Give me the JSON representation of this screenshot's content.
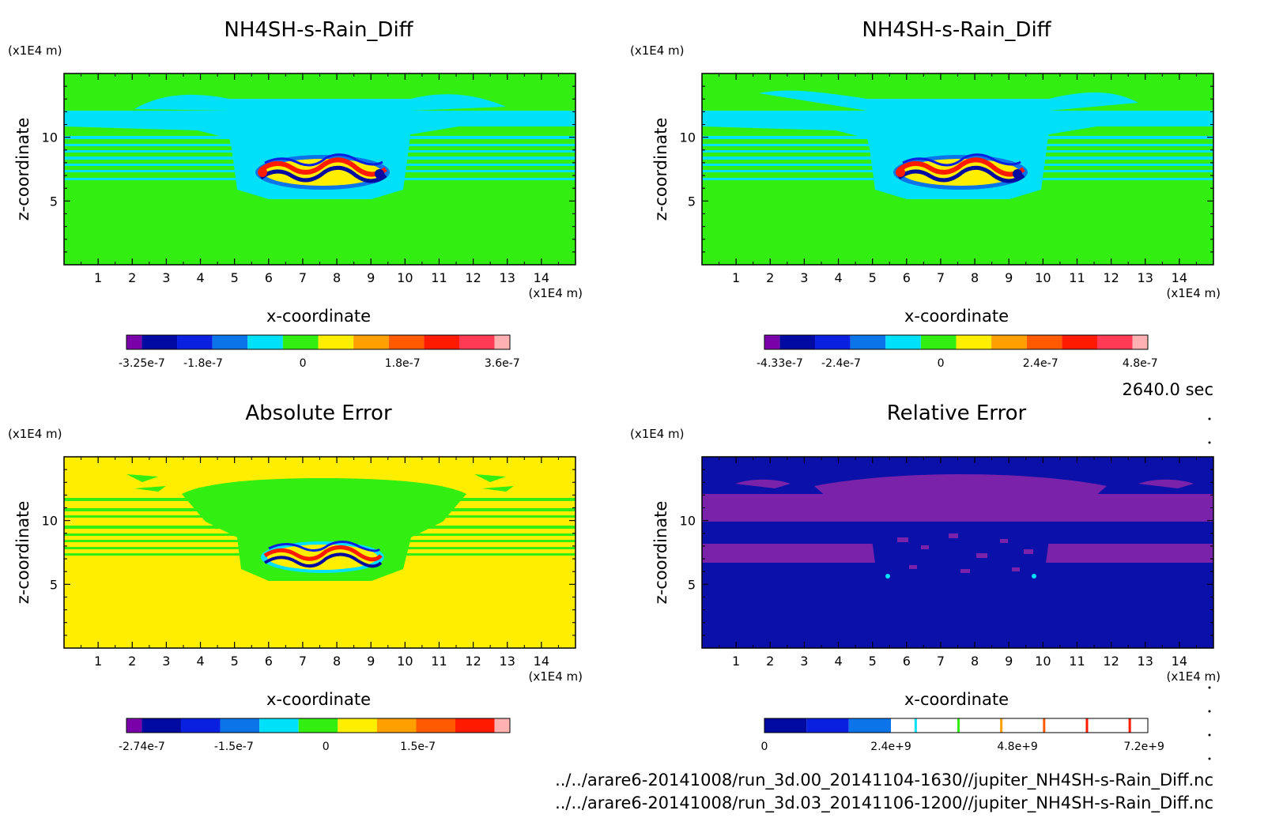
{
  "time_label": "2640.0 sec",
  "footer": {
    "lines": [
      "../../arare6-20141008/run_3d.00_20141104-1630//jupiter_NH4SH-s-Rain_Diff.nc",
      "../../arare6-20141008/run_3d.03_20141106-1200//jupiter_NH4SH-s-Rain_Diff.nc"
    ]
  },
  "chart_data": [
    {
      "type": "heatmap",
      "title": "NH4SH-s-Rain_Diff",
      "xlabel": "x-coordinate",
      "ylabel": "z-coordinate",
      "x_unit": "(x1E4 m)",
      "y_unit": "(x1E4 m)",
      "xlim": [
        0,
        15
      ],
      "ylim": [
        0,
        15
      ],
      "x_ticks": [
        "1",
        "2",
        "3",
        "4",
        "5",
        "6",
        "7",
        "8",
        "9",
        "10",
        "11",
        "12",
        "13",
        "14"
      ],
      "y_ticks": [
        "5",
        "10"
      ],
      "colorbar": {
        "colors": [
          "#7a00aa",
          "#000aa0",
          "#0a20e0",
          "#0a74e8",
          "#00e0f8",
          "#33ee11",
          "#ffee00",
          "#ffa000",
          "#ff5a00",
          "#ff1a00",
          "#ff3a55",
          "#ffb0b0"
        ],
        "tick_labels": [
          "-3.25e-7",
          "-1.8e-7",
          "0",
          "1.8e-7",
          "3.6e-7"
        ]
      },
      "background": "green",
      "pattern": "green background with cyan band at 6-12 and unstable wave pattern near x 6-9.6, z 6-8"
    },
    {
      "type": "heatmap",
      "title": "NH4SH-s-Rain_Diff",
      "xlabel": "x-coordinate",
      "ylabel": "z-coordinate",
      "x_unit": "(x1E4 m)",
      "y_unit": "(x1E4 m)",
      "xlim": [
        0,
        15
      ],
      "ylim": [
        0,
        15
      ],
      "x_ticks": [
        "1",
        "2",
        "3",
        "4",
        "5",
        "6",
        "7",
        "8",
        "9",
        "10",
        "11",
        "12",
        "13",
        "14"
      ],
      "y_ticks": [
        "5",
        "10"
      ],
      "colorbar": {
        "colors": [
          "#7a00aa",
          "#000aa0",
          "#0a20e0",
          "#0a74e8",
          "#00e0f8",
          "#33ee11",
          "#ffee00",
          "#ffa000",
          "#ff5a00",
          "#ff1a00",
          "#ff3a55",
          "#ffb0b0"
        ],
        "tick_labels": [
          "-4.33e-7",
          "-2.4e-7",
          "0",
          "2.4e-7",
          "4.8e-7"
        ]
      },
      "background": "green",
      "pattern": "same as left panel"
    },
    {
      "type": "heatmap",
      "title": "Absolute Error",
      "xlabel": "x-coordinate",
      "ylabel": "z-coordinate",
      "x_unit": "(x1E4 m)",
      "y_unit": "(x1E4 m)",
      "xlim": [
        0,
        15
      ],
      "ylim": [
        0,
        15
      ],
      "x_ticks": [
        "1",
        "2",
        "3",
        "4",
        "5",
        "6",
        "7",
        "8",
        "9",
        "10",
        "11",
        "12",
        "13",
        "14"
      ],
      "y_ticks": [
        "5",
        "10"
      ],
      "colorbar": {
        "colors": [
          "#7a00aa",
          "#000aa0",
          "#0a20e0",
          "#0a74e8",
          "#00e0f8",
          "#33ee11",
          "#ffee00",
          "#ffa000",
          "#ff5a00",
          "#ff1a00",
          "#ffb0b0"
        ],
        "tick_labels": [
          "-2.74e-7",
          "-1.5e-7",
          "0",
          "1.5e-7"
        ]
      },
      "background": "yellow",
      "pattern": "yellow background with green bands and wave pattern"
    },
    {
      "type": "heatmap",
      "title": "Relative Error",
      "xlabel": "x-coordinate",
      "ylabel": "z-coordinate",
      "x_unit": "(x1E4 m)",
      "y_unit": "(x1E4 m)",
      "xlim": [
        0,
        15
      ],
      "ylim": [
        0,
        15
      ],
      "x_ticks": [
        "1",
        "2",
        "3",
        "4",
        "5",
        "6",
        "7",
        "8",
        "9",
        "10",
        "11",
        "12",
        "13",
        "14"
      ],
      "y_ticks": [
        "5",
        "10"
      ],
      "colorbar": {
        "colors": [
          "#000aa0",
          "#0a20e0",
          "#0a74e8",
          "#ffffff",
          "#ffffff",
          "#ffffff",
          "#ffffff",
          "#ffffff",
          "#ffffff"
        ],
        "marker_colors": [
          "#00e0f8",
          "#33ee11",
          "#ffa000",
          "#ff5a00",
          "#ff1a00",
          "#ff1a00"
        ],
        "tick_labels": [
          "0",
          "2.4e+9",
          "4.8e+9",
          "7.2e+9"
        ]
      },
      "background": "blue",
      "pattern": "dark blue with purple bands"
    }
  ]
}
